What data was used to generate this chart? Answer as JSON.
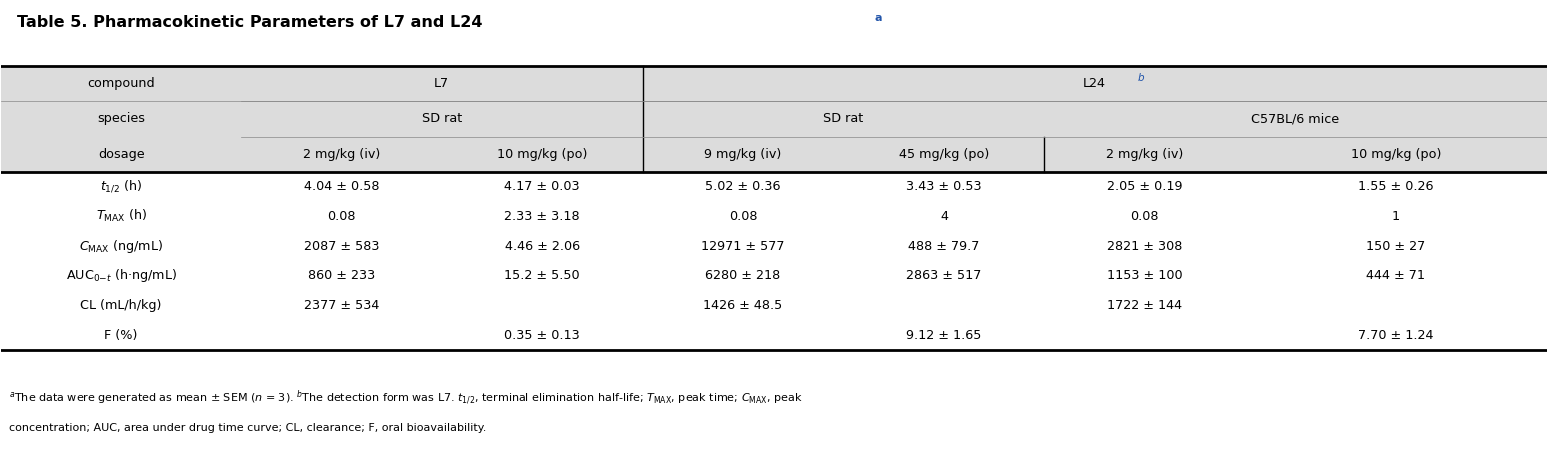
{
  "title": "Table 5. Pharmacokinetic Parameters of L7 and L24",
  "title_superscript": "a",
  "bg_color": "#f0f0f0",
  "header_bg": "#dcdcdc",
  "white_bg": "#ffffff",
  "col_headers": {
    "compound_row": [
      "compound",
      "L7",
      "",
      "L24",
      "",
      "",
      ""
    ],
    "species_row": [
      "species",
      "SD rat",
      "",
      "SD rat",
      "",
      "C57BL/6 mice",
      ""
    ],
    "dosage_row": [
      "dosage",
      "2 mg/kg (iv)",
      "10 mg/kg (po)",
      "9 mg/kg (iv)",
      "45 mg/kg (po)",
      "2 mg/kg (iv)",
      "10 mg/kg (po)"
    ]
  },
  "row_labels": [
    "t_{1/2} (h)",
    "T_{MAX} (h)",
    "C_{MAX} (ng/mL)",
    "AUC_{0-t} (h·ng/mL)",
    "CL (mL/h/kg)",
    "F (%)"
  ],
  "data": [
    [
      "4.04 ± 0.58",
      "4.17 ± 0.03",
      "5.02 ± 0.36",
      "3.43 ± 0.53",
      "2.05 ± 0.19",
      "1.55 ± 0.26"
    ],
    [
      "0.08",
      "2.33 ± 3.18",
      "0.08",
      "4",
      "0.08",
      "1"
    ],
    [
      "2087 ± 583",
      "4.46 ± 2.06",
      "12971 ± 577",
      "488 ± 79.7",
      "2821 ± 308",
      "150 ± 27"
    ],
    [
      "860 ± 233",
      "15.2 ± 5.50",
      "6280 ± 218",
      "2863 ± 517",
      "1153 ± 100",
      "444 ± 71"
    ],
    [
      "2377 ± 534",
      "",
      "1426 ± 48.5",
      "",
      "1722 ± 144",
      ""
    ],
    [
      "",
      "0.35 ± 0.13",
      "",
      "9.12 ± 1.65",
      "",
      "7.70 ± 1.24"
    ]
  ],
  "footnote": "$^{a}$The data were generated as mean ± SEM ($n$ = 3). $^{b}$The detection form was L7. $t_{1/2}$, terminal elimination half-life; $T_{\\mathrm{MAX}}$, peak time; $C_{\\mathrm{MAX}}$, peak\nconcentration; AUC, area under drug time curve; CL, clearance; F, oral bioavailability.",
  "footnote_plain": [
    "aThe data were generated as mean ± SEM (n = 3). bThe detection form was L7. t1/2, terminal elimination half-life; TMAX, peak time; CMAX, peak",
    "concentration; AUC, area under drug time curve; CL, clearance; F, oral bioavailability."
  ]
}
